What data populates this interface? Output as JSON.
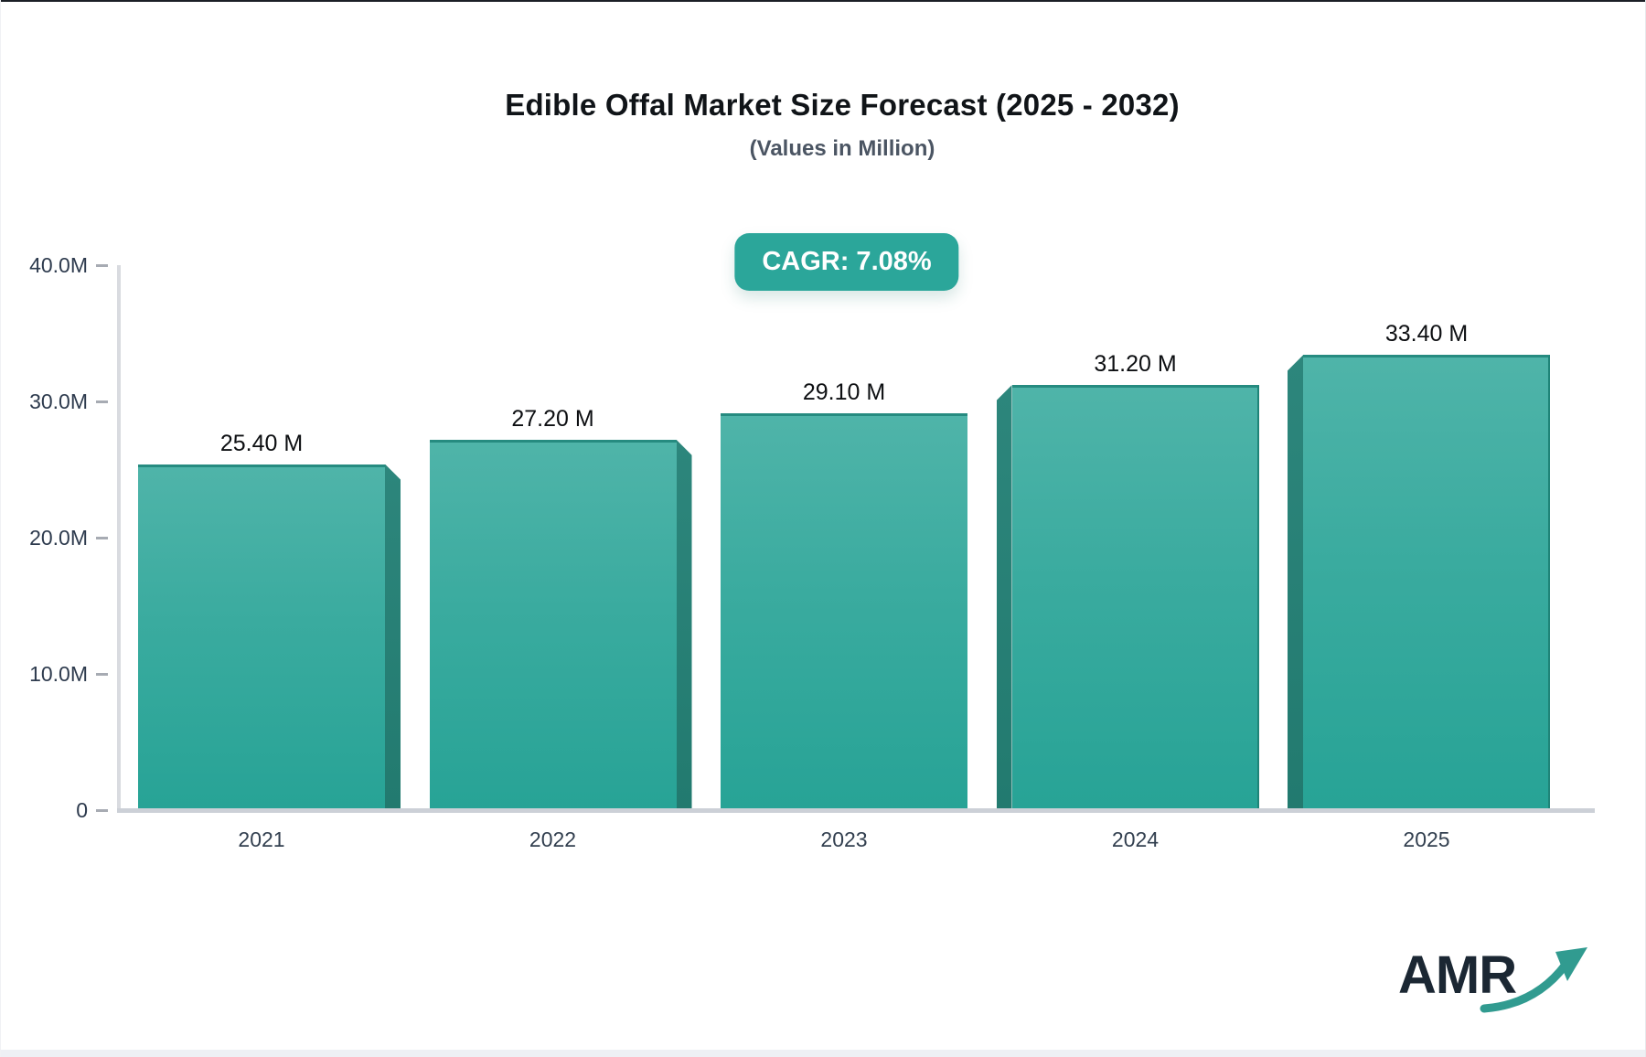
{
  "header": {
    "title": "Edible Offal Market Size Forecast (2025 - 2032)",
    "subtitle": "(Values in Million)",
    "cagr_badge": "CAGR: 7.08%"
  },
  "chart_data": {
    "type": "bar",
    "title": "Edible Offal Market Size Forecast (2025 - 2032)",
    "subtitle": "(Values in Million)",
    "cagr_percent": "7.08%",
    "unit": "Million",
    "categories": [
      "2021",
      "2022",
      "2023",
      "2024",
      "2025"
    ],
    "values": [
      25.4,
      27.2,
      29.1,
      31.2,
      33.4
    ],
    "bar_labels": [
      "25.40 M",
      "27.20 M",
      "29.10 M",
      "31.20 M",
      "33.40 M"
    ],
    "ylim": [
      0,
      40
    ],
    "y_ticks": [
      {
        "value": 40,
        "label": "40.0M"
      },
      {
        "value": 30,
        "label": "30.0M"
      },
      {
        "value": 20,
        "label": "20.0M"
      },
      {
        "value": 10,
        "label": "10.0M"
      },
      {
        "value": 0,
        "label": "0"
      }
    ],
    "grid": false,
    "legend": false,
    "colors": {
      "bar_top": "#4fb4a9",
      "bar_bottom": "#27a396",
      "bar_side": "#2a8076",
      "bar_edge": "#268b80",
      "axis_line": "#d9dbe0",
      "tick_text": "#2e3b4e",
      "badge_bg": "#2ba69a",
      "arrow": "#319b90"
    }
  },
  "footer": {
    "logo_text": "AMR"
  }
}
